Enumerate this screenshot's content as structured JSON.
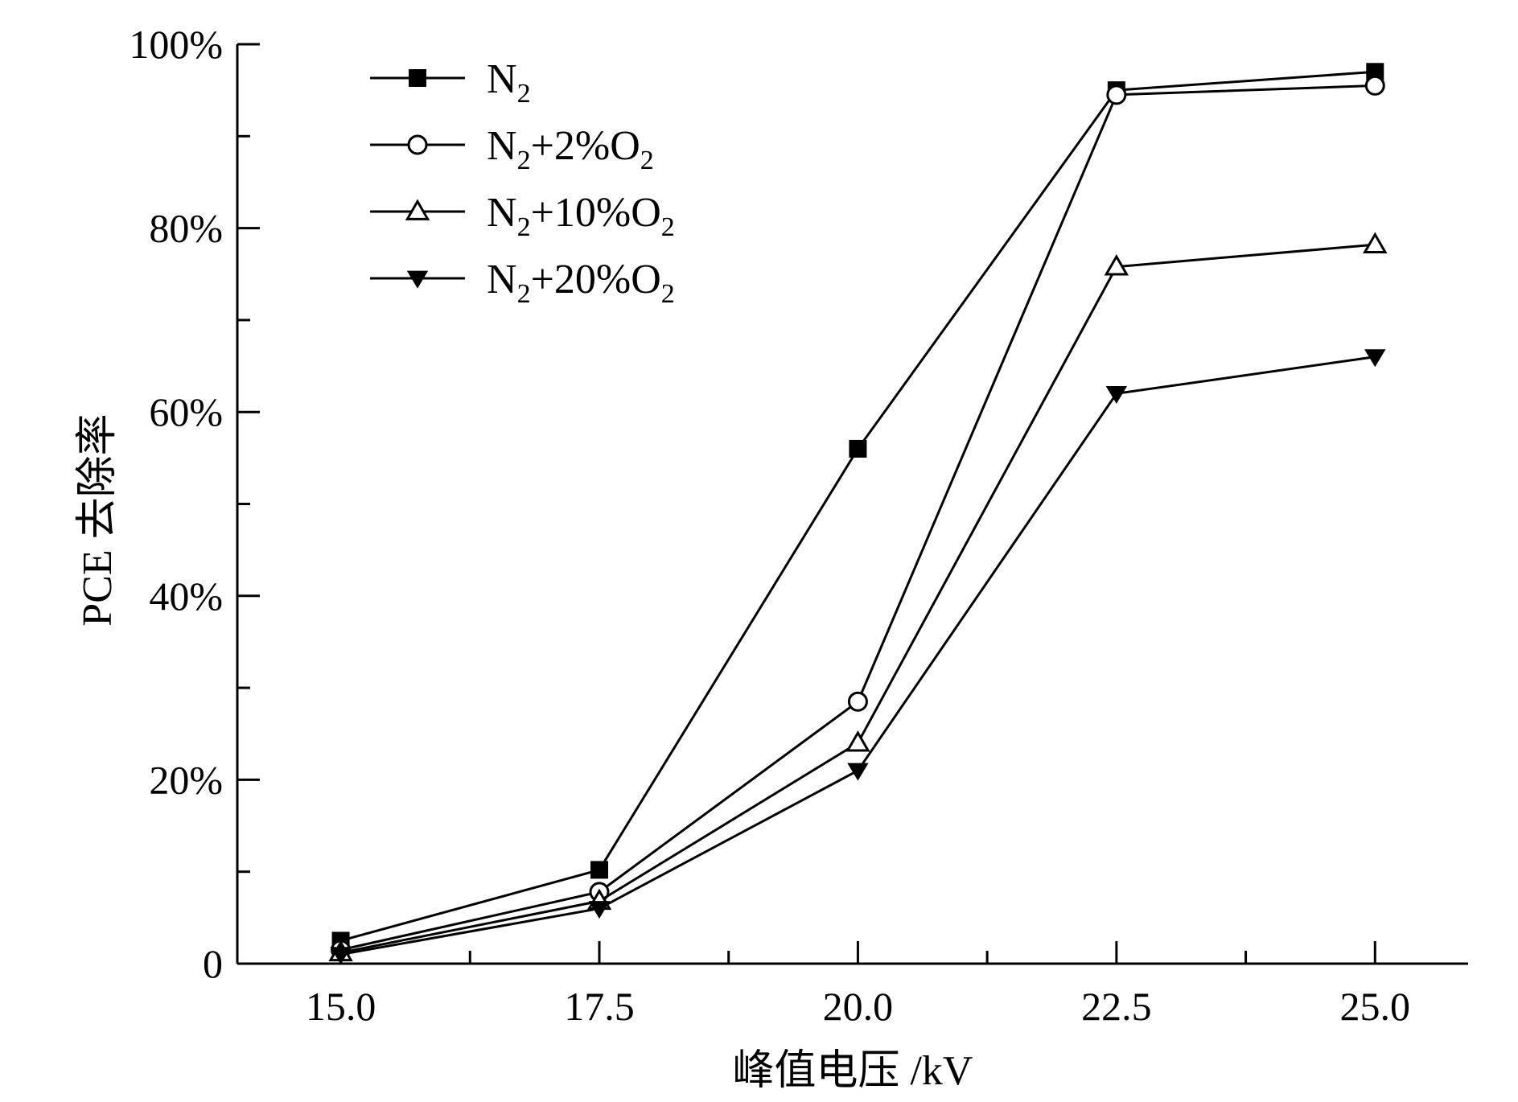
{
  "chart_data": {
    "type": "line",
    "xlabel": "峰值电压 /kV",
    "ylabel": "PCE 去除率",
    "x": [
      15.0,
      17.5,
      20.0,
      22.5,
      25.0
    ],
    "x_tick_labels": [
      "15.0",
      "17.5",
      "20.0",
      "22.5",
      "25.0"
    ],
    "xlim": [
      14.0,
      25.9
    ],
    "ylim": [
      0,
      100
    ],
    "y_tick_labels": [
      "0",
      "20%",
      "40%",
      "60%",
      "80%",
      "100%"
    ],
    "y_tick_values": [
      0,
      20,
      40,
      60,
      80,
      100
    ],
    "grid": false,
    "legend_position": "top-left",
    "series": [
      {
        "name": "N2+",
        "legend": {
          "main": "N",
          "sub": "2",
          "after": "",
          "sub2": ""
        },
        "marker": "square-filled",
        "values": [
          2.5,
          10.2,
          56.0,
          95.0,
          97.0
        ]
      },
      {
        "name": "N2+2%O2",
        "legend": {
          "main": "N",
          "sub": "2",
          "after": "+2%O",
          "sub2": "2"
        },
        "marker": "circle-open",
        "values": [
          1.5,
          7.8,
          28.5,
          94.5,
          95.5
        ]
      },
      {
        "name": "N2+10%O2",
        "legend": {
          "main": "N",
          "sub": "2",
          "after": "+10%O",
          "sub2": "2"
        },
        "marker": "triangle-up-open",
        "values": [
          1.2,
          6.8,
          24.0,
          75.8,
          78.2
        ]
      },
      {
        "name": "N2+20%O2",
        "legend": {
          "main": "N",
          "sub": "2",
          "after": "+20%O",
          "sub2": "2"
        },
        "marker": "triangle-down-filled",
        "values": [
          1.0,
          6.0,
          21.0,
          62.0,
          66.0
        ]
      }
    ]
  }
}
